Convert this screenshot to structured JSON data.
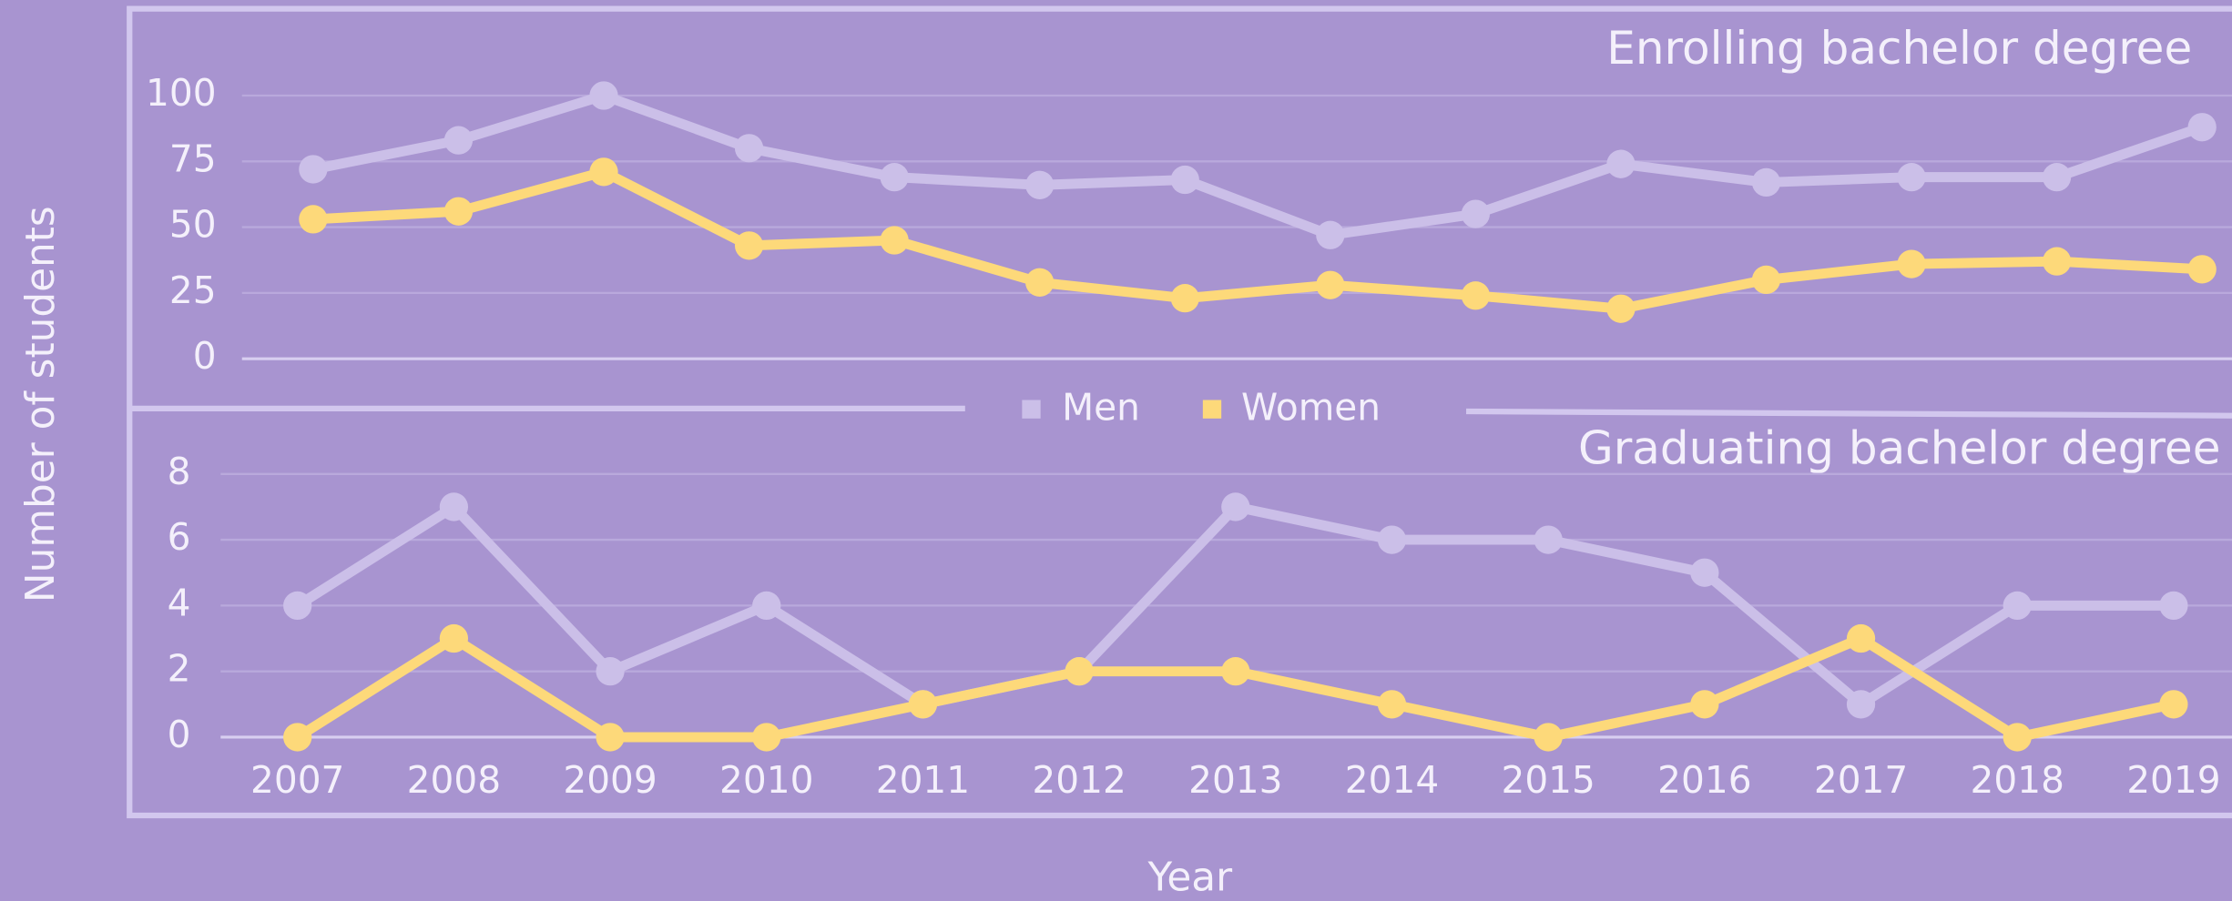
{
  "chart_data": [
    {
      "type": "line",
      "title": "Enrolling bachelor degree",
      "ylabel": "Number of students",
      "categories": [
        null,
        null,
        null,
        null,
        null,
        null,
        null,
        null,
        null,
        null,
        null,
        null,
        null,
        null
      ],
      "ylim": [
        0,
        100
      ],
      "yticks": [
        0,
        25,
        50,
        75,
        100
      ],
      "grid": true,
      "series": [
        {
          "name": "Men",
          "color": "#cbbfe8",
          "values": [
            72,
            83,
            100,
            80,
            69,
            66,
            68,
            47,
            55,
            74,
            67,
            69,
            69,
            88
          ]
        },
        {
          "name": "Women",
          "color": "#fdd97a",
          "values": [
            53,
            56,
            71,
            43,
            45,
            29,
            23,
            28,
            24,
            19,
            30,
            36,
            37,
            34
          ]
        }
      ]
    },
    {
      "type": "line",
      "title": "Graduating bachelor degree",
      "xlabel": "Year",
      "categories": [
        "2007",
        "2008",
        "2009",
        "2010",
        "2011",
        "2012",
        "2013",
        "2014",
        "2015",
        "2016",
        "2017",
        "2018",
        "2019"
      ],
      "ylim": [
        0,
        8
      ],
      "yticks": [
        0,
        2,
        4,
        6,
        8
      ],
      "grid": true,
      "series": [
        {
          "name": "Men",
          "color": "#cbbfe8",
          "values": [
            4,
            7,
            2,
            4,
            1,
            2,
            7,
            6,
            6,
            5,
            1,
            4,
            4
          ]
        },
        {
          "name": "Women",
          "color": "#fdd97a",
          "values": [
            0,
            3,
            0,
            0,
            1,
            2,
            2,
            1,
            0,
            1,
            3,
            0,
            1
          ]
        }
      ]
    }
  ]
}
